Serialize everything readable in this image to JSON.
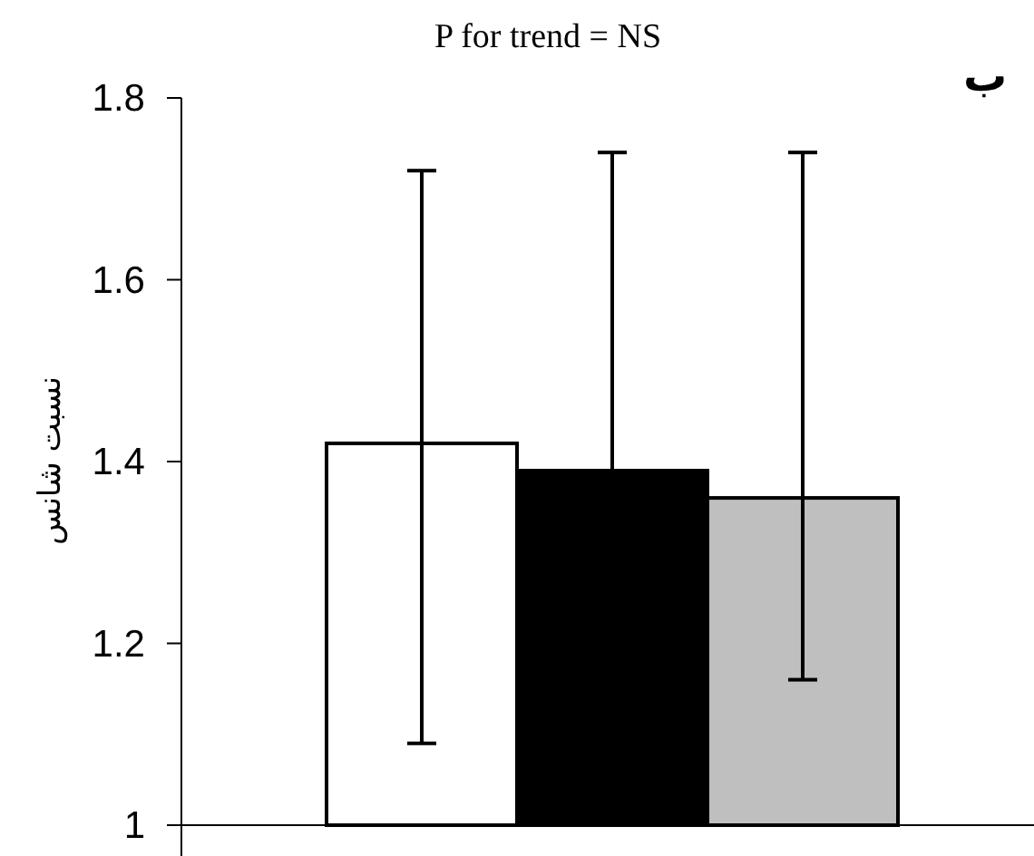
{
  "chart_data": {
    "type": "bar",
    "title": "P for trend = NS",
    "ylabel": "نسبت شانس",
    "annotations": [
      "ب"
    ],
    "categories": [
      null,
      null,
      null
    ],
    "values": [
      1.42,
      1.39,
      1.36
    ],
    "colors": [
      "#ffffff",
      "#000000",
      "#bfbfbf"
    ],
    "errors": [
      [
        1.09,
        1.72
      ],
      [
        1.39,
        1.74
      ],
      [
        1.16,
        1.74
      ]
    ],
    "ylim": [
      1,
      1.8
    ],
    "yticks": [
      1,
      1.2,
      1.4,
      1.6,
      1.8
    ],
    "grid": false
  }
}
